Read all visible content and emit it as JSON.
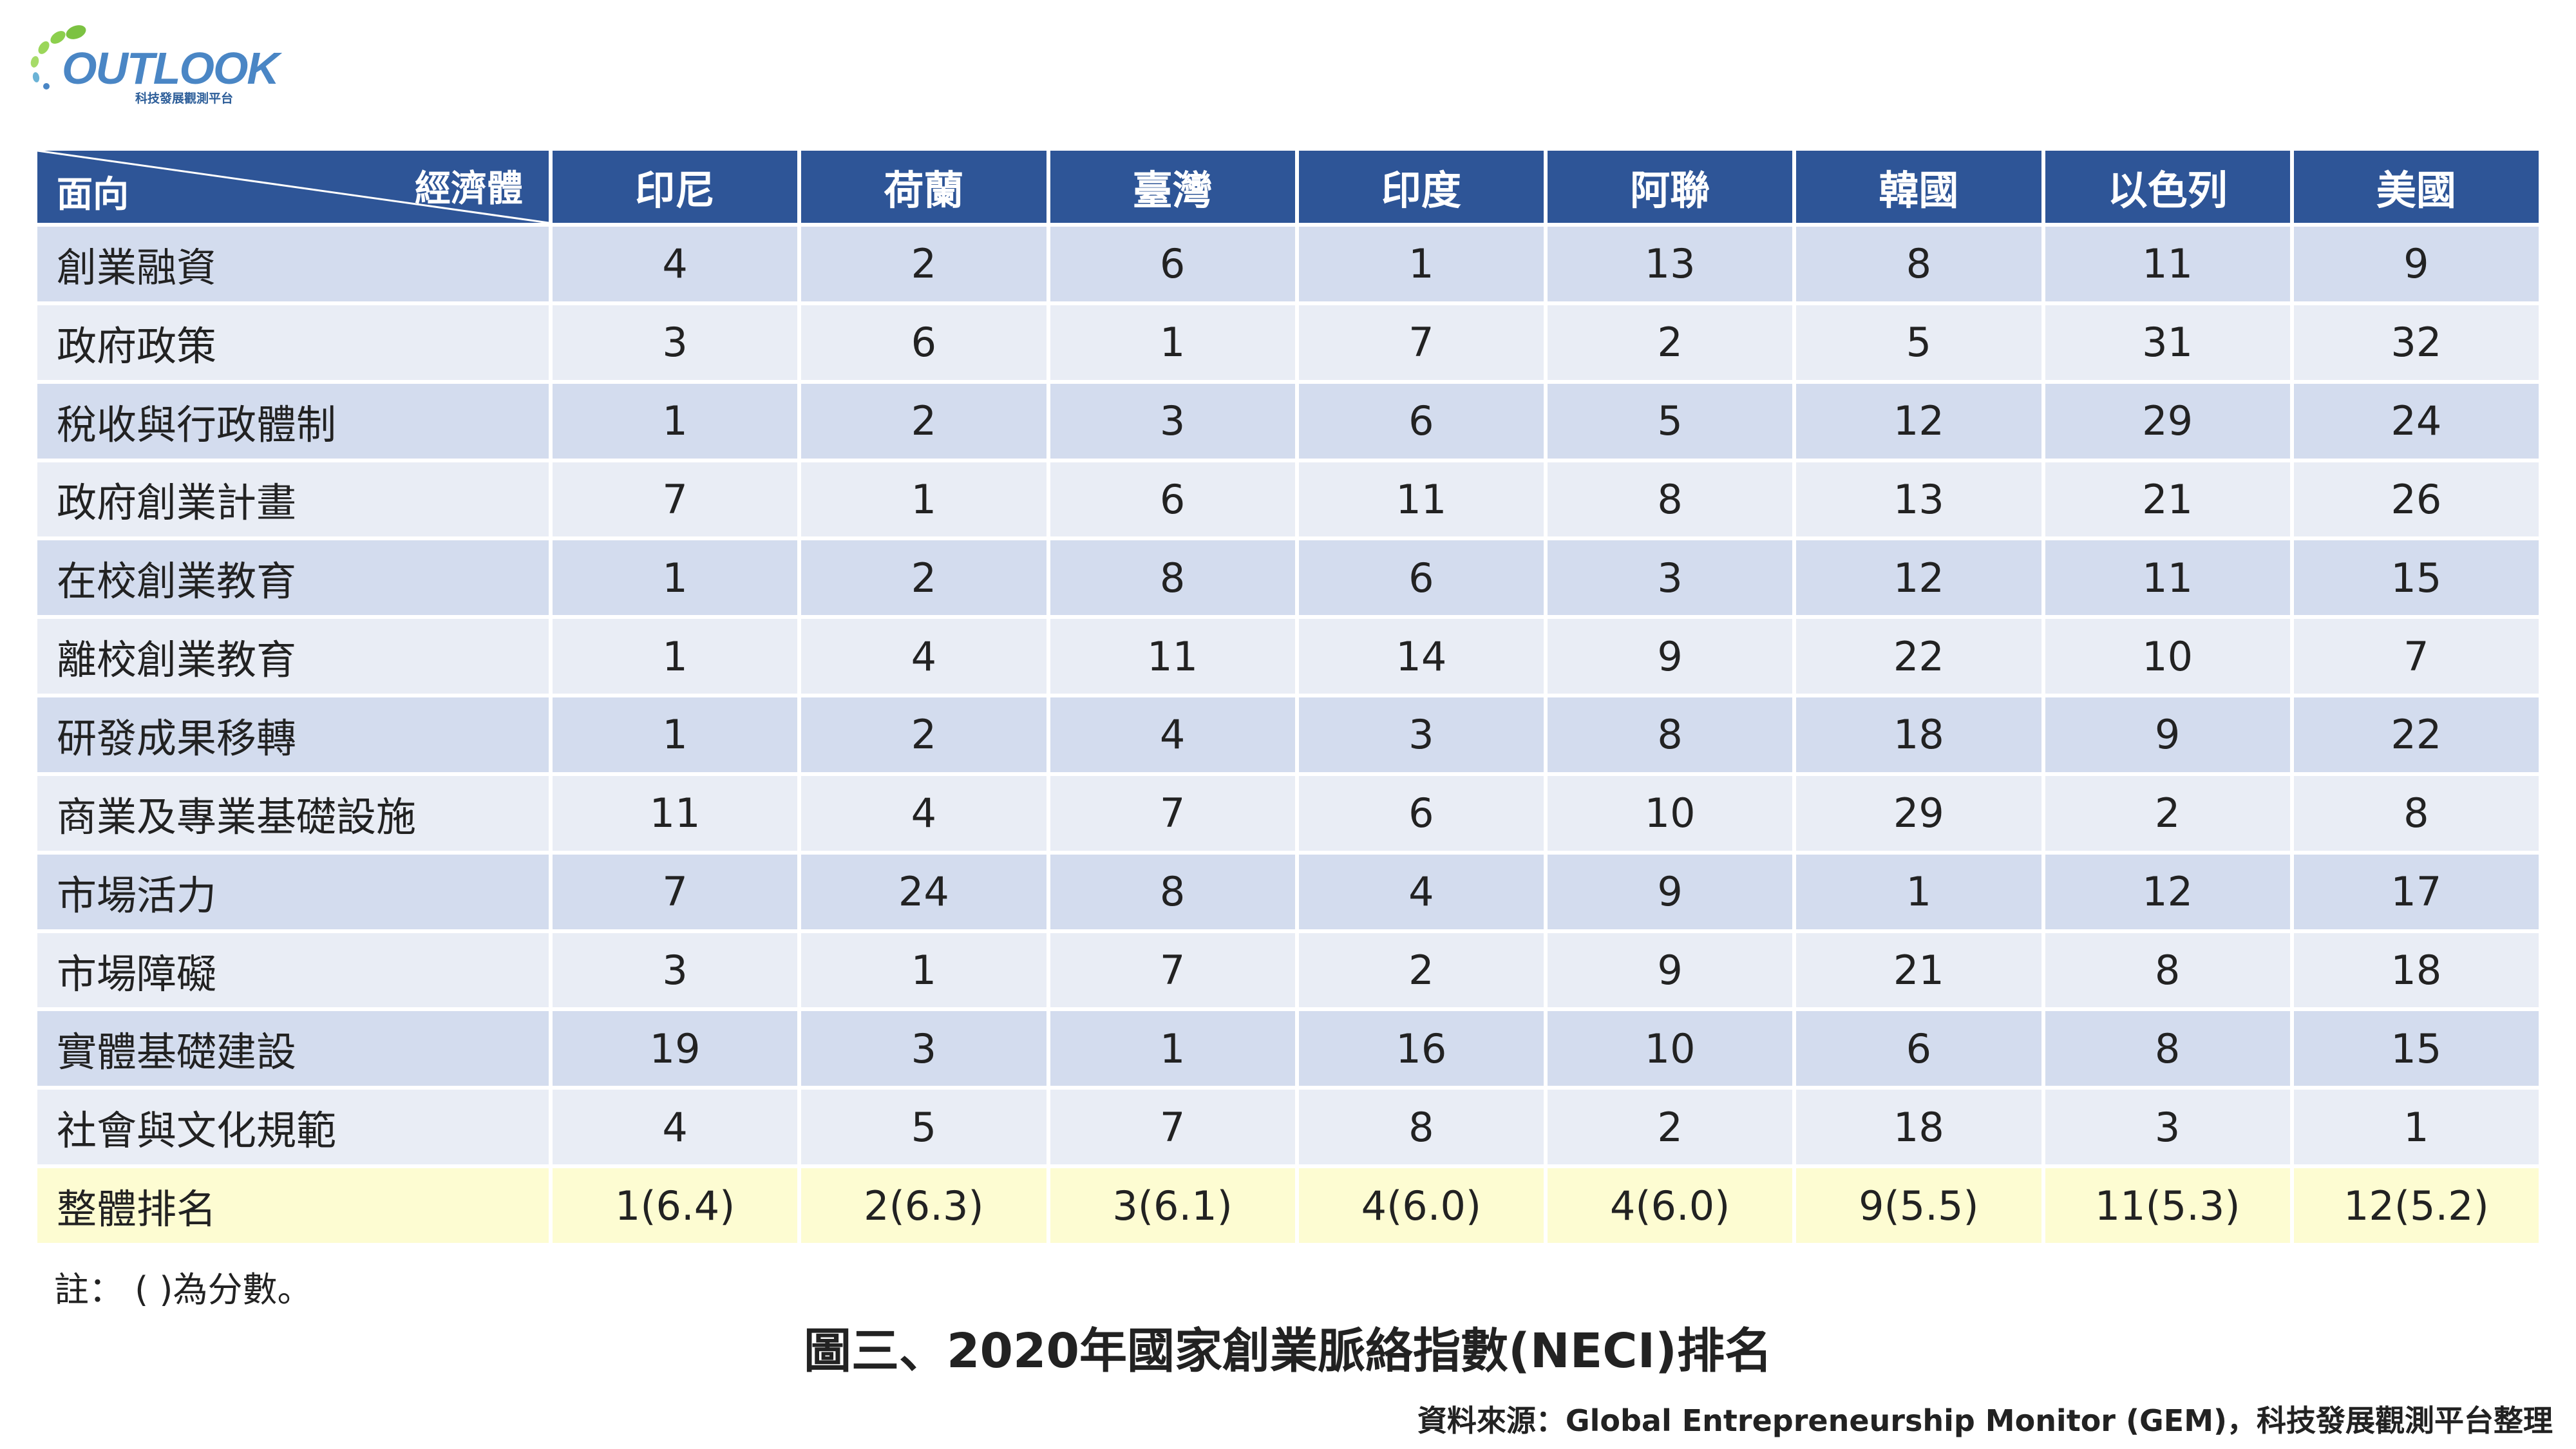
{
  "logo": {
    "word": "OUTLOOK",
    "subtitle": "科技發展觀測平台"
  },
  "table": {
    "corner_top": "經濟體",
    "corner_bottom": "面向",
    "columns": [
      "印尼",
      "荷蘭",
      "臺灣",
      "印度",
      "阿聯",
      "韓國",
      "以色列",
      "美國"
    ],
    "rows": [
      {
        "label": "創業融資",
        "values": [
          "4",
          "2",
          "6",
          "1",
          "13",
          "8",
          "11",
          "9"
        ]
      },
      {
        "label": "政府政策",
        "values": [
          "3",
          "6",
          "1",
          "7",
          "2",
          "5",
          "31",
          "32"
        ]
      },
      {
        "label": "稅收與行政體制",
        "values": [
          "1",
          "2",
          "3",
          "6",
          "5",
          "12",
          "29",
          "24"
        ]
      },
      {
        "label": "政府創業計畫",
        "values": [
          "7",
          "1",
          "6",
          "11",
          "8",
          "13",
          "21",
          "26"
        ]
      },
      {
        "label": "在校創業教育",
        "values": [
          "1",
          "2",
          "8",
          "6",
          "3",
          "12",
          "11",
          "15"
        ]
      },
      {
        "label": "離校創業教育",
        "values": [
          "1",
          "4",
          "11",
          "14",
          "9",
          "22",
          "10",
          "7"
        ]
      },
      {
        "label": "研發成果移轉",
        "values": [
          "1",
          "2",
          "4",
          "3",
          "8",
          "18",
          "9",
          "22"
        ]
      },
      {
        "label": "商業及專業基礎設施",
        "values": [
          "11",
          "4",
          "7",
          "6",
          "10",
          "29",
          "2",
          "8"
        ]
      },
      {
        "label": "市場活力",
        "values": [
          "7",
          "24",
          "8",
          "4",
          "9",
          "1",
          "12",
          "17"
        ]
      },
      {
        "label": "市場障礙",
        "values": [
          "3",
          "1",
          "7",
          "2",
          "9",
          "21",
          "8",
          "18"
        ]
      },
      {
        "label": "實體基礎建設",
        "values": [
          "19",
          "3",
          "1",
          "16",
          "10",
          "6",
          "8",
          "15"
        ]
      },
      {
        "label": "社會與文化規範",
        "values": [
          "4",
          "5",
          "7",
          "8",
          "2",
          "18",
          "3",
          "1"
        ]
      }
    ],
    "total": {
      "label": "整體排名",
      "values": [
        "1(6.4)",
        "2(6.3)",
        "3(6.1)",
        "4(6.0)",
        "4(6.0)",
        "9(5.5)",
        "11(5.3)",
        "12(5.2)"
      ]
    }
  },
  "note": "註： ( )為分數。",
  "caption": "圖三、2020年國家創業脈絡指數(NECI)排名",
  "source": "資料來源：Global Entrepreneurship Monitor (GEM)，科技發展觀測平台整理"
}
